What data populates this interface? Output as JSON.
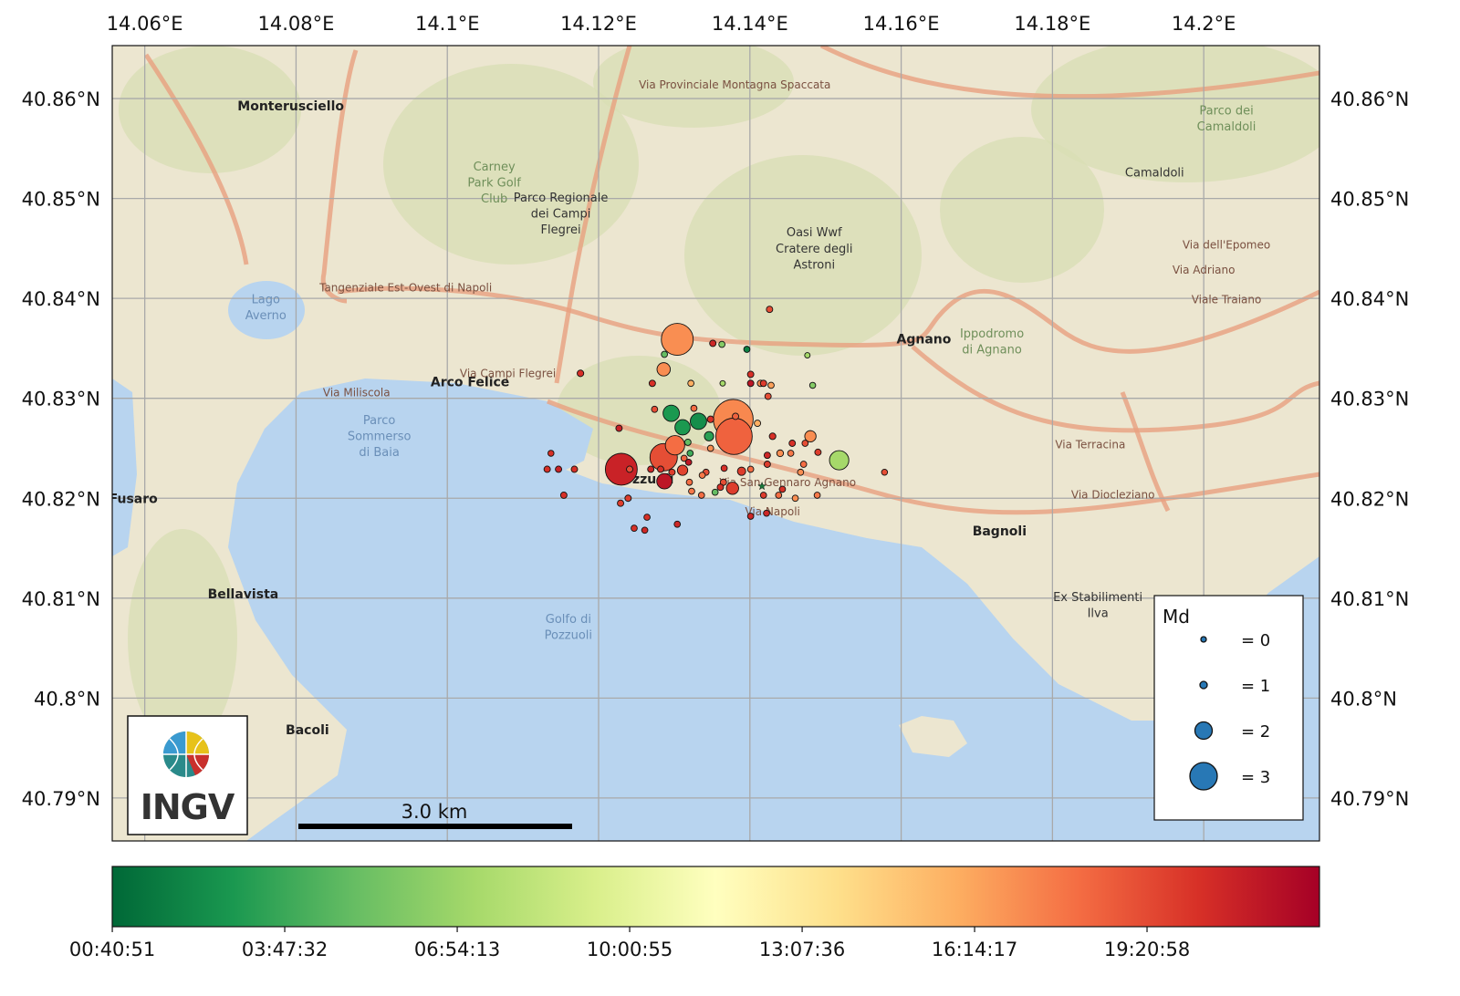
{
  "map": {
    "extent": {
      "lon": [
        14.0557,
        14.2153
      ],
      "lat": [
        40.7857,
        40.8653
      ]
    },
    "grid": true,
    "lon_ticks": [
      {
        "value": 14.06,
        "label": "14.06°E"
      },
      {
        "value": 14.08,
        "label": "14.08°E"
      },
      {
        "value": 14.1,
        "label": "14.1°E"
      },
      {
        "value": 14.12,
        "label": "14.12°E"
      },
      {
        "value": 14.14,
        "label": "14.14°E"
      },
      {
        "value": 14.16,
        "label": "14.16°E"
      },
      {
        "value": 14.18,
        "label": "14.18°E"
      },
      {
        "value": 14.2,
        "label": "14.2°E"
      }
    ],
    "lat_ticks": [
      {
        "value": 40.86,
        "label": "40.86°N"
      },
      {
        "value": 40.85,
        "label": "40.85°N"
      },
      {
        "value": 40.84,
        "label": "40.84°N"
      },
      {
        "value": 40.83,
        "label": "40.83°N"
      },
      {
        "value": 40.82,
        "label": "40.82°N"
      },
      {
        "value": 40.81,
        "label": "40.81°N"
      },
      {
        "value": 40.8,
        "label": "40.8°N"
      },
      {
        "value": 40.79,
        "label": "40.79°N"
      }
    ],
    "colors": {
      "land": "#ece6d0",
      "hills": "#d9dfb5",
      "sea": "#b8d4ef",
      "road": "#e9a07f",
      "grid": "#a9a9a9"
    },
    "places": [
      {
        "text": "Monterusciello",
        "style": "placeb",
        "lon": 14.0793,
        "lat": 40.8588
      },
      {
        "text": "Carney",
        "style": "park",
        "lon": 14.1062,
        "lat": 40.8528
      },
      {
        "text": "Park Golf",
        "style": "park",
        "lon": 14.1062,
        "lat": 40.8512
      },
      {
        "text": "Club",
        "style": "park",
        "lon": 14.1062,
        "lat": 40.8496
      },
      {
        "text": "Parco Regionale",
        "style": "place",
        "lon": 14.115,
        "lat": 40.8497
      },
      {
        "text": "dei Campi",
        "style": "place",
        "lon": 14.115,
        "lat": 40.8481
      },
      {
        "text": "Flegrei",
        "style": "place",
        "lon": 14.115,
        "lat": 40.8465
      },
      {
        "text": "Oasi Wwf",
        "style": "place",
        "lon": 14.1485,
        "lat": 40.8462
      },
      {
        "text": "Cratere degli",
        "style": "place",
        "lon": 14.1485,
        "lat": 40.8446
      },
      {
        "text": "Astroni",
        "style": "place",
        "lon": 14.1485,
        "lat": 40.843
      },
      {
        "text": "Lago",
        "style": "water",
        "lon": 14.076,
        "lat": 40.8395
      },
      {
        "text": "Averno",
        "style": "water",
        "lon": 14.076,
        "lat": 40.8379
      },
      {
        "text": "Arco Felice",
        "style": "placeb",
        "lon": 14.103,
        "lat": 40.8312
      },
      {
        "text": "Agnano",
        "style": "placeb",
        "lon": 14.163,
        "lat": 40.8355
      },
      {
        "text": "Ippodromo",
        "style": "park",
        "lon": 14.172,
        "lat": 40.8361
      },
      {
        "text": "di Agnano",
        "style": "park",
        "lon": 14.172,
        "lat": 40.8345
      },
      {
        "text": "Parco",
        "style": "water",
        "lon": 14.091,
        "lat": 40.8274
      },
      {
        "text": "Sommerso",
        "style": "water",
        "lon": 14.091,
        "lat": 40.8258
      },
      {
        "text": "di Baia",
        "style": "water",
        "lon": 14.091,
        "lat": 40.8242
      },
      {
        "text": "Pozzuoli",
        "style": "placeb",
        "lon": 14.126,
        "lat": 40.8215
      },
      {
        "text": "Bagnoli",
        "style": "placeb",
        "lon": 14.173,
        "lat": 40.8163
      },
      {
        "text": "Ex Stabilimenti",
        "style": "place",
        "lon": 14.186,
        "lat": 40.8097
      },
      {
        "text": "Ilva",
        "style": "place",
        "lon": 14.186,
        "lat": 40.8081
      },
      {
        "text": "Golfo di",
        "style": "water",
        "lon": 14.116,
        "lat": 40.8075
      },
      {
        "text": "Pozzuoli",
        "style": "water",
        "lon": 14.116,
        "lat": 40.8059
      },
      {
        "text": "Bellavista",
        "style": "placeb",
        "lon": 14.073,
        "lat": 40.81
      },
      {
        "text": "Bacoli",
        "style": "placeb",
        "lon": 14.0815,
        "lat": 40.7964
      },
      {
        "text": "Fusaro",
        "style": "placeb",
        "lon": 14.0585,
        "lat": 40.8195
      },
      {
        "text": "Camaldoli",
        "style": "place",
        "lon": 14.1935,
        "lat": 40.8522
      },
      {
        "text": "Parco dei",
        "style": "park",
        "lon": 14.203,
        "lat": 40.8584
      },
      {
        "text": "Camaldoli",
        "style": "park",
        "lon": 14.203,
        "lat": 40.8568
      },
      {
        "text": "Tangenziale Est-Ovest di Napoli",
        "style": "road",
        "lon": 14.0945,
        "lat": 40.8407
      },
      {
        "text": "Via Campi Flegrei",
        "style": "road",
        "lon": 14.108,
        "lat": 40.8321
      },
      {
        "text": "Via Miliscola",
        "style": "road",
        "lon": 14.088,
        "lat": 40.8302
      },
      {
        "text": "Via San Gennaro Agnano",
        "style": "road",
        "lon": 14.145,
        "lat": 40.8212
      },
      {
        "text": "Via Napoli",
        "style": "road",
        "lon": 14.143,
        "lat": 40.8183
      },
      {
        "text": "Via Diocleziano",
        "style": "road",
        "lon": 14.188,
        "lat": 40.82
      },
      {
        "text": "Via Terracina",
        "style": "road",
        "lon": 14.185,
        "lat": 40.825
      },
      {
        "text": "Via dell'Epomeo",
        "style": "road",
        "lon": 14.203,
        "lat": 40.845
      },
      {
        "text": "Via Adriano",
        "style": "road",
        "lon": 14.2,
        "lat": 40.8425
      },
      {
        "text": "Viale Traiano",
        "style": "road",
        "lon": 14.203,
        "lat": 40.8395
      },
      {
        "text": "Via Provinciale Montagna Spaccata",
        "style": "road",
        "lon": 14.138,
        "lat": 40.861
      }
    ]
  },
  "events": [
    {
      "lon": 14.1304,
      "lat": 40.8359,
      "md": 3.4,
      "time_h": 17.0
    },
    {
      "lon": 14.1378,
      "lat": 40.8279,
      "md": 4.1,
      "time_h": 17.2
    },
    {
      "lon": 14.1379,
      "lat": 40.8262,
      "md": 3.8,
      "time_h": 18.5
    },
    {
      "lon": 14.123,
      "lat": 40.8229,
      "md": 3.4,
      "time_h": 20.9
    },
    {
      "lon": 14.1286,
      "lat": 40.8241,
      "md": 3.0,
      "time_h": 19.2
    },
    {
      "lon": 14.1301,
      "lat": 40.8253,
      "md": 2.2,
      "time_h": 18.1
    },
    {
      "lon": 14.1286,
      "lat": 40.8329,
      "md": 1.6,
      "time_h": 17.0
    },
    {
      "lon": 14.1296,
      "lat": 40.8285,
      "md": 1.9,
      "time_h": 2.9
    },
    {
      "lon": 14.1332,
      "lat": 40.8277,
      "md": 1.9,
      "time_h": 2.4
    },
    {
      "lon": 14.1311,
      "lat": 40.8271,
      "md": 1.8,
      "time_h": 2.9
    },
    {
      "lon": 14.1518,
      "lat": 40.8238,
      "md": 2.2,
      "time_h": 7.2
    },
    {
      "lon": 14.1287,
      "lat": 40.8217,
      "md": 1.8,
      "time_h": 21.4
    },
    {
      "lon": 14.1377,
      "lat": 40.821,
      "md": 1.5,
      "time_h": 19.8
    },
    {
      "lon": 14.148,
      "lat": 40.8262,
      "md": 1.4,
      "time_h": 17.0
    },
    {
      "lon": 14.1346,
      "lat": 40.8262,
      "md": 1.2,
      "time_h": 3.3
    },
    {
      "lon": 14.1311,
      "lat": 40.8228,
      "md": 1.3,
      "time_h": 19.6
    },
    {
      "lon": 14.1389,
      "lat": 40.8227,
      "md": 1.1,
      "time_h": 19.8
    },
    {
      "lon": 14.1426,
      "lat": 40.8389,
      "md": 0.5,
      "time_h": 19.2
    },
    {
      "lon": 14.1351,
      "lat": 40.8355,
      "md": 0.5,
      "time_h": 20.7
    },
    {
      "lon": 14.1363,
      "lat": 40.8354,
      "md": 0.4,
      "time_h": 6.1
    },
    {
      "lon": 14.1396,
      "lat": 40.8349,
      "md": 0.4,
      "time_h": 1.8
    },
    {
      "lon": 14.1476,
      "lat": 40.8343,
      "md": 0.0,
      "time_h": 7.2
    },
    {
      "lon": 14.1287,
      "lat": 40.8344,
      "md": 0.4,
      "time_h": 5.0
    },
    {
      "lon": 14.1176,
      "lat": 40.8325,
      "md": 0.6,
      "time_h": 20.3
    },
    {
      "lon": 14.1271,
      "lat": 40.8315,
      "md": 0.5,
      "time_h": 20.3
    },
    {
      "lon": 14.1322,
      "lat": 40.8315,
      "md": 0.4,
      "time_h": 15.9
    },
    {
      "lon": 14.1364,
      "lat": 40.8315,
      "md": 0.0,
      "time_h": 7.2
    },
    {
      "lon": 14.1401,
      "lat": 40.8324,
      "md": 0.5,
      "time_h": 20.3
    },
    {
      "lon": 14.1401,
      "lat": 40.8315,
      "md": 0.5,
      "time_h": 21.4
    },
    {
      "lon": 14.1414,
      "lat": 40.8315,
      "md": 0.5,
      "time_h": 17.0
    },
    {
      "lon": 14.1418,
      "lat": 40.8315,
      "md": 0.5,
      "time_h": 19.8
    },
    {
      "lon": 14.1428,
      "lat": 40.8313,
      "md": 0.4,
      "time_h": 16.4
    },
    {
      "lon": 14.1483,
      "lat": 40.8313,
      "md": 0.3,
      "time_h": 6.1
    },
    {
      "lon": 14.1424,
      "lat": 40.8302,
      "md": 0.5,
      "time_h": 19.2
    },
    {
      "lon": 14.1274,
      "lat": 40.8289,
      "md": 0.4,
      "time_h": 19.2
    },
    {
      "lon": 14.1326,
      "lat": 40.829,
      "md": 0.4,
      "time_h": 18.1
    },
    {
      "lon": 14.1348,
      "lat": 40.8279,
      "md": 0.6,
      "time_h": 20.3
    },
    {
      "lon": 14.141,
      "lat": 40.8275,
      "md": 0.5,
      "time_h": 15.9
    },
    {
      "lon": 14.1381,
      "lat": 40.8282,
      "md": 0.5,
      "time_h": 18.5
    },
    {
      "lon": 14.1227,
      "lat": 40.827,
      "md": 0.5,
      "time_h": 20.9
    },
    {
      "lon": 14.1318,
      "lat": 40.8256,
      "md": 0.5,
      "time_h": 5.0
    },
    {
      "lon": 14.1321,
      "lat": 40.8245,
      "md": 0.4,
      "time_h": 3.9
    },
    {
      "lon": 14.1348,
      "lat": 40.825,
      "md": 0.4,
      "time_h": 17.0
    },
    {
      "lon": 14.143,
      "lat": 40.8262,
      "md": 0.6,
      "time_h": 20.3
    },
    {
      "lon": 14.1456,
      "lat": 40.8255,
      "md": 0.5,
      "time_h": 20.3
    },
    {
      "lon": 14.1473,
      "lat": 40.8255,
      "md": 0.4,
      "time_h": 19.2
    },
    {
      "lon": 14.149,
      "lat": 40.8246,
      "md": 0.5,
      "time_h": 19.8
    },
    {
      "lon": 14.144,
      "lat": 40.8245,
      "md": 0.7,
      "time_h": 17.0
    },
    {
      "lon": 14.1454,
      "lat": 40.8245,
      "md": 0.4,
      "time_h": 17.7
    },
    {
      "lon": 14.1423,
      "lat": 40.8243,
      "md": 0.5,
      "time_h": 20.7
    },
    {
      "lon": 14.1471,
      "lat": 40.8234,
      "md": 0.4,
      "time_h": 18.1
    },
    {
      "lon": 14.1423,
      "lat": 40.8234,
      "md": 0.5,
      "time_h": 19.8
    },
    {
      "lon": 14.1467,
      "lat": 40.8226,
      "md": 0.4,
      "time_h": 17.0
    },
    {
      "lon": 14.1401,
      "lat": 40.8229,
      "md": 0.4,
      "time_h": 18.1
    },
    {
      "lon": 14.1366,
      "lat": 40.823,
      "md": 0.4,
      "time_h": 20.3
    },
    {
      "lon": 14.1313,
      "lat": 40.824,
      "md": 0.4,
      "time_h": 18.5
    },
    {
      "lon": 14.1319,
      "lat": 40.8236,
      "md": 0.4,
      "time_h": 21.4
    },
    {
      "lon": 14.1137,
      "lat": 40.8245,
      "md": 0.3,
      "time_h": 20.3
    },
    {
      "lon": 14.1132,
      "lat": 40.8229,
      "md": 0.5,
      "time_h": 20.3
    },
    {
      "lon": 14.1147,
      "lat": 40.8229,
      "md": 0.5,
      "time_h": 20.9
    },
    {
      "lon": 14.1168,
      "lat": 40.8229,
      "md": 0.5,
      "time_h": 20.3
    },
    {
      "lon": 14.1241,
      "lat": 40.8229,
      "md": 0.5,
      "time_h": 19.2
    },
    {
      "lon": 14.1269,
      "lat": 40.8229,
      "md": 0.5,
      "time_h": 20.7
    },
    {
      "lon": 14.1282,
      "lat": 40.8229,
      "md": 0.5,
      "time_h": 20.3
    },
    {
      "lon": 14.1297,
      "lat": 40.8226,
      "md": 0.5,
      "time_h": 19.8
    },
    {
      "lon": 14.1342,
      "lat": 40.8226,
      "md": 0.4,
      "time_h": 19.2
    },
    {
      "lon": 14.1337,
      "lat": 40.8223,
      "md": 0.4,
      "time_h": 17.7
    },
    {
      "lon": 14.132,
      "lat": 40.8216,
      "md": 0.4,
      "time_h": 18.1
    },
    {
      "lon": 14.1365,
      "lat": 40.8216,
      "md": 0.5,
      "time_h": 19.2
    },
    {
      "lon": 14.1361,
      "lat": 40.8211,
      "md": 0.5,
      "time_h": 20.3
    },
    {
      "lon": 14.1354,
      "lat": 40.8206,
      "md": 0.4,
      "time_h": 5.0
    },
    {
      "lon": 14.1323,
      "lat": 40.8207,
      "md": 0.4,
      "time_h": 17.7
    },
    {
      "lon": 14.1336,
      "lat": 40.8203,
      "md": 0.4,
      "time_h": 18.1
    },
    {
      "lon": 14.1418,
      "lat": 40.8203,
      "md": 0.4,
      "time_h": 19.8
    },
    {
      "lon": 14.1438,
      "lat": 40.8203,
      "md": 0.4,
      "time_h": 18.1
    },
    {
      "lon": 14.1443,
      "lat": 40.8209,
      "md": 0.4,
      "time_h": 20.3
    },
    {
      "lon": 14.146,
      "lat": 40.82,
      "md": 0.4,
      "time_h": 17.0
    },
    {
      "lon": 14.1489,
      "lat": 40.8203,
      "md": 0.4,
      "time_h": 17.7
    },
    {
      "lon": 14.1154,
      "lat": 40.8203,
      "md": 0.5,
      "time_h": 20.3
    },
    {
      "lon": 14.1229,
      "lat": 40.8195,
      "md": 0.5,
      "time_h": 19.8
    },
    {
      "lon": 14.1239,
      "lat": 40.82,
      "md": 0.5,
      "time_h": 19.8
    },
    {
      "lon": 14.1264,
      "lat": 40.8181,
      "md": 0.4,
      "time_h": 20.3
    },
    {
      "lon": 14.1304,
      "lat": 40.8174,
      "md": 0.4,
      "time_h": 20.7
    },
    {
      "lon": 14.1401,
      "lat": 40.8182,
      "md": 0.4,
      "time_h": 20.7
    },
    {
      "lon": 14.1422,
      "lat": 40.8185,
      "md": 0.4,
      "time_h": 20.7
    },
    {
      "lon": 14.1247,
      "lat": 40.817,
      "md": 0.4,
      "time_h": 20.3
    },
    {
      "lon": 14.1261,
      "lat": 40.8168,
      "md": 0.4,
      "time_h": 20.7
    },
    {
      "lon": 14.1578,
      "lat": 40.8226,
      "md": 0.3,
      "time_h": 19.2
    }
  ],
  "star": {
    "lon": 14.1416,
    "lat": 40.8212,
    "color": "#1a7a3a"
  },
  "legend": {
    "title": "Md",
    "entries": [
      {
        "md": 0,
        "label": "= 0"
      },
      {
        "md": 1,
        "label": "= 1"
      },
      {
        "md": 2,
        "label": "= 2"
      },
      {
        "md": 3,
        "label": "= 3"
      }
    ],
    "color": "#2878b5"
  },
  "scalebar": {
    "label": "3.0 km"
  },
  "logo": {
    "text": "INGV"
  },
  "colorbar": {
    "colormap": [
      "#006837",
      "#1a9850",
      "#66bd63",
      "#a6d96a",
      "#d9ef8b",
      "#ffffbf",
      "#fee08b",
      "#fdae61",
      "#f46d43",
      "#d73027",
      "#a50026"
    ],
    "range_h": [
      0.68,
      22.46
    ],
    "ticks": [
      {
        "value_h": 0.681,
        "label": "00:40:51"
      },
      {
        "value_h": 3.792,
        "label": "03:47:32"
      },
      {
        "value_h": 6.904,
        "label": "06:54:13"
      },
      {
        "value_h": 10.015,
        "label": "10:00:55"
      },
      {
        "value_h": 13.127,
        "label": "13:07:36"
      },
      {
        "value_h": 16.238,
        "label": "16:14:17"
      },
      {
        "value_h": 19.349,
        "label": "19:20:58"
      }
    ]
  }
}
